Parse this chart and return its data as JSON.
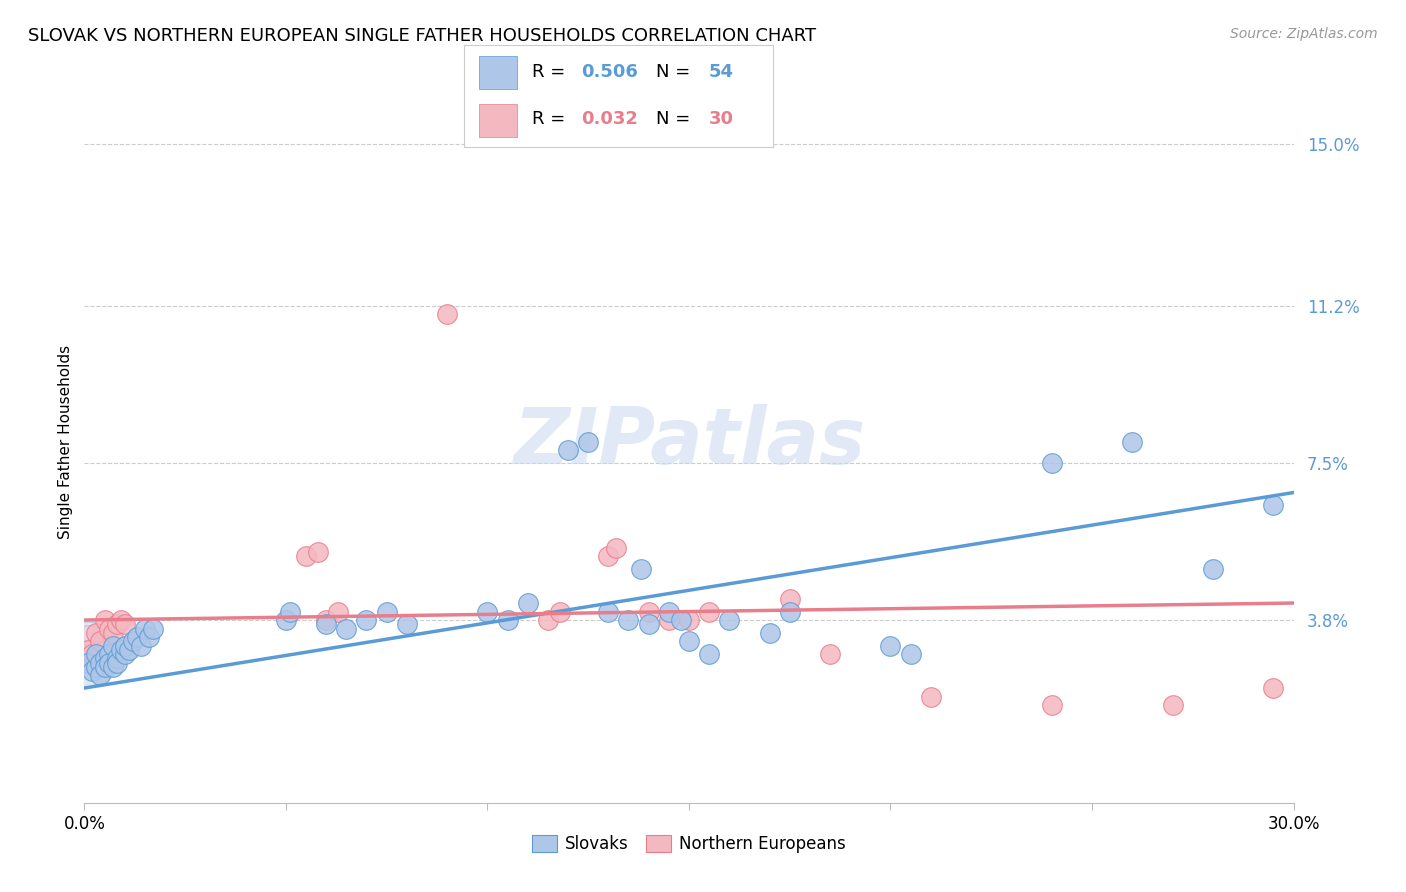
{
  "title": "SLOVAK VS NORTHERN EUROPEAN SINGLE FATHER HOUSEHOLDS CORRELATION CHART",
  "source": "Source: ZipAtlas.com",
  "ylabel": "Single Father Households",
  "ytick_labels": [
    "15.0%",
    "11.2%",
    "7.5%",
    "3.8%"
  ],
  "ytick_values": [
    0.15,
    0.112,
    0.075,
    0.038
  ],
  "xlim": [
    0.0,
    0.3
  ],
  "ylim": [
    -0.005,
    0.165
  ],
  "blue_scatter": [
    [
      0.001,
      0.028
    ],
    [
      0.002,
      0.026
    ],
    [
      0.003,
      0.027
    ],
    [
      0.003,
      0.03
    ],
    [
      0.004,
      0.028
    ],
    [
      0.004,
      0.025
    ],
    [
      0.005,
      0.029
    ],
    [
      0.005,
      0.027
    ],
    [
      0.006,
      0.03
    ],
    [
      0.006,
      0.028
    ],
    [
      0.007,
      0.027
    ],
    [
      0.007,
      0.032
    ],
    [
      0.008,
      0.029
    ],
    [
      0.008,
      0.028
    ],
    [
      0.009,
      0.031
    ],
    [
      0.01,
      0.03
    ],
    [
      0.01,
      0.032
    ],
    [
      0.011,
      0.031
    ],
    [
      0.012,
      0.033
    ],
    [
      0.013,
      0.034
    ],
    [
      0.014,
      0.032
    ],
    [
      0.015,
      0.036
    ],
    [
      0.016,
      0.034
    ],
    [
      0.017,
      0.036
    ],
    [
      0.05,
      0.038
    ],
    [
      0.051,
      0.04
    ],
    [
      0.06,
      0.037
    ],
    [
      0.065,
      0.036
    ],
    [
      0.07,
      0.038
    ],
    [
      0.075,
      0.04
    ],
    [
      0.08,
      0.037
    ],
    [
      0.1,
      0.04
    ],
    [
      0.105,
      0.038
    ],
    [
      0.11,
      0.042
    ],
    [
      0.12,
      0.078
    ],
    [
      0.125,
      0.08
    ],
    [
      0.13,
      0.04
    ],
    [
      0.135,
      0.038
    ],
    [
      0.138,
      0.05
    ],
    [
      0.14,
      0.037
    ],
    [
      0.145,
      0.04
    ],
    [
      0.148,
      0.038
    ],
    [
      0.15,
      0.033
    ],
    [
      0.155,
      0.03
    ],
    [
      0.16,
      0.038
    ],
    [
      0.17,
      0.035
    ],
    [
      0.175,
      0.04
    ],
    [
      0.2,
      0.032
    ],
    [
      0.205,
      0.03
    ],
    [
      0.24,
      0.075
    ],
    [
      0.26,
      0.08
    ],
    [
      0.28,
      0.05
    ],
    [
      0.295,
      0.065
    ]
  ],
  "pink_scatter": [
    [
      0.001,
      0.031
    ],
    [
      0.002,
      0.03
    ],
    [
      0.003,
      0.035
    ],
    [
      0.004,
      0.033
    ],
    [
      0.005,
      0.038
    ],
    [
      0.006,
      0.036
    ],
    [
      0.007,
      0.035
    ],
    [
      0.008,
      0.037
    ],
    [
      0.009,
      0.038
    ],
    [
      0.01,
      0.037
    ],
    [
      0.055,
      0.053
    ],
    [
      0.058,
      0.054
    ],
    [
      0.06,
      0.038
    ],
    [
      0.063,
      0.04
    ],
    [
      0.09,
      0.11
    ],
    [
      0.115,
      0.038
    ],
    [
      0.118,
      0.04
    ],
    [
      0.13,
      0.053
    ],
    [
      0.132,
      0.055
    ],
    [
      0.14,
      0.04
    ],
    [
      0.145,
      0.038
    ],
    [
      0.15,
      0.038
    ],
    [
      0.155,
      0.04
    ],
    [
      0.175,
      0.043
    ],
    [
      0.185,
      0.03
    ],
    [
      0.21,
      0.02
    ],
    [
      0.24,
      0.018
    ],
    [
      0.27,
      0.018
    ],
    [
      0.295,
      0.022
    ]
  ],
  "blue_line_x": [
    0.0,
    0.3
  ],
  "blue_line_y": [
    0.022,
    0.068
  ],
  "pink_line_x": [
    0.0,
    0.3
  ],
  "pink_line_y": [
    0.038,
    0.042
  ],
  "blue_color": "#5b9bd5",
  "blue_fill": "#aec6e8",
  "pink_color": "#e87d8c",
  "pink_fill": "#f4b8c1",
  "grid_color": "#cccccc",
  "background_color": "#ffffff",
  "watermark": "ZIPatlas",
  "legend_slovaks_label": "Slovaks",
  "legend_north_label": "Northern Europeans",
  "blue_R": "0.506",
  "blue_N": "54",
  "pink_R": "0.032",
  "pink_N": "30"
}
